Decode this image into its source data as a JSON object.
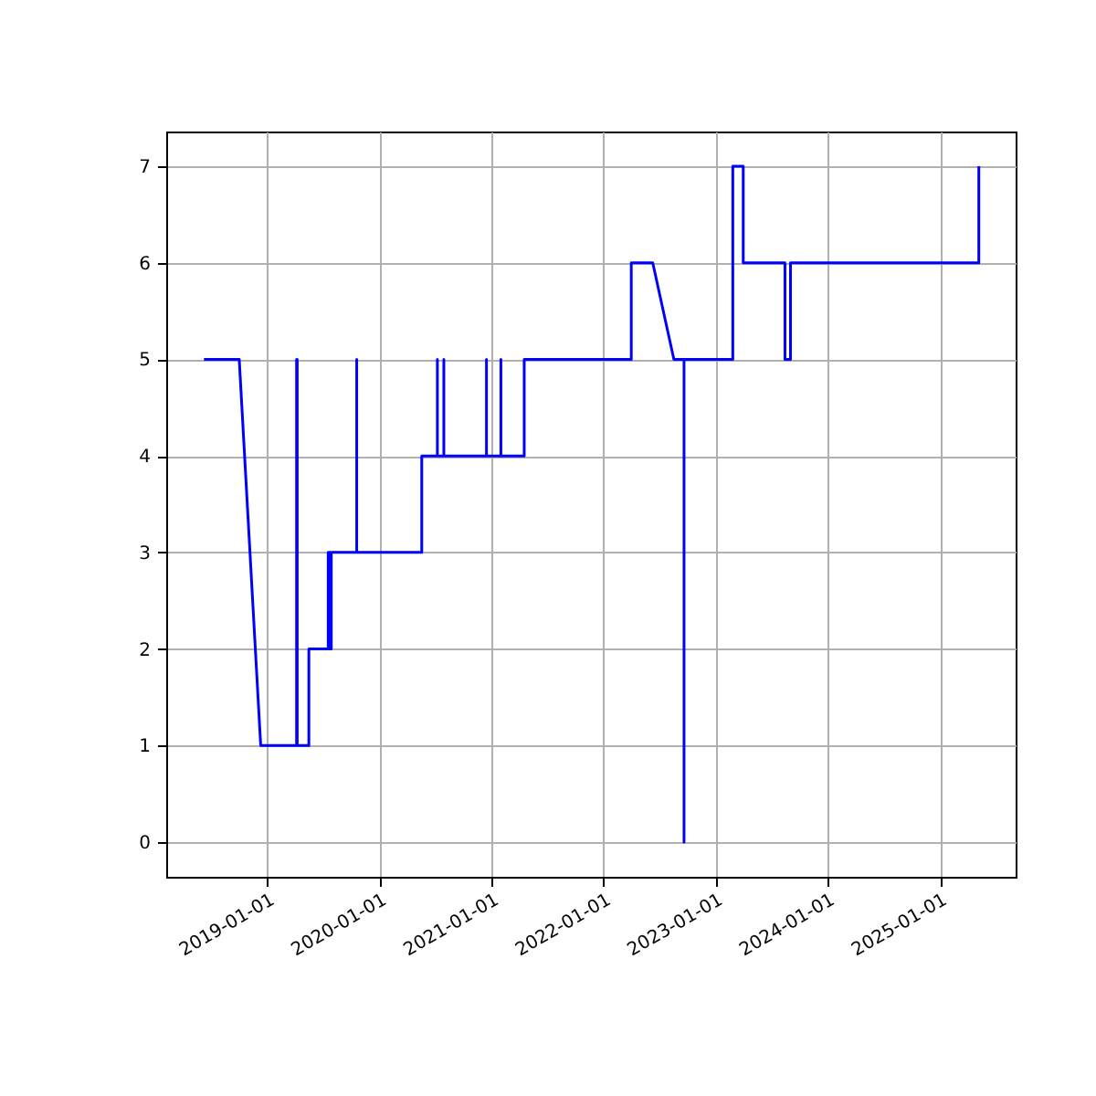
{
  "chart_data": {
    "type": "line",
    "x": [
      "2018-06-08",
      "2018-10-01",
      "2018-12-10",
      "2019-04-06",
      "2019-04-06",
      "2019-04-08",
      "2019-04-08",
      "2019-05-16",
      "2019-05-16",
      "2019-07-18",
      "2019-07-18",
      "2019-07-24",
      "2019-07-24",
      "2019-07-28",
      "2019-07-28",
      "2019-10-19",
      "2019-10-19",
      "2019-10-19",
      "2020-05-18",
      "2020-05-18",
      "2020-07-08",
      "2020-07-08",
      "2020-07-08",
      "2020-07-29",
      "2020-07-29",
      "2020-07-29",
      "2020-12-15",
      "2020-12-15",
      "2020-12-15",
      "2021-01-31",
      "2021-01-31",
      "2021-01-31",
      "2021-04-17",
      "2021-04-17",
      "2022-04-01",
      "2022-04-01",
      "2022-06-10",
      "2022-08-18",
      "2022-09-20",
      "2022-09-20",
      "2022-09-20",
      "2023-02-26",
      "2023-02-26",
      "2023-04-01",
      "2023-04-01",
      "2023-08-15",
      "2023-08-15",
      "2023-09-02",
      "2023-09-02",
      "2025-05-08",
      "2025-05-08"
    ],
    "series": [
      {
        "color": "#0000ff",
        "values": [
          5,
          5,
          1,
          1,
          5,
          5,
          1,
          1,
          2,
          2,
          3,
          3,
          2,
          2,
          3,
          3,
          5,
          3,
          3,
          4,
          4,
          5,
          4,
          4,
          5,
          4,
          4,
          5,
          4,
          4,
          5,
          4,
          4,
          5,
          5,
          6,
          6,
          5,
          5,
          0,
          5,
          5,
          7,
          7,
          6,
          6,
          5,
          5,
          6,
          6,
          7
        ]
      }
    ],
    "xlim": [
      "2018-02-05",
      "2025-09-05"
    ],
    "xticks": [
      "2019-01-01",
      "2020-01-01",
      "2021-01-01",
      "2022-01-01",
      "2023-01-01",
      "2024-01-01",
      "2025-01-01"
    ],
    "ylim": [
      -0.36,
      7.36
    ],
    "yticks": [
      0,
      1,
      2,
      3,
      4,
      5,
      6,
      7
    ],
    "grid": true
  }
}
